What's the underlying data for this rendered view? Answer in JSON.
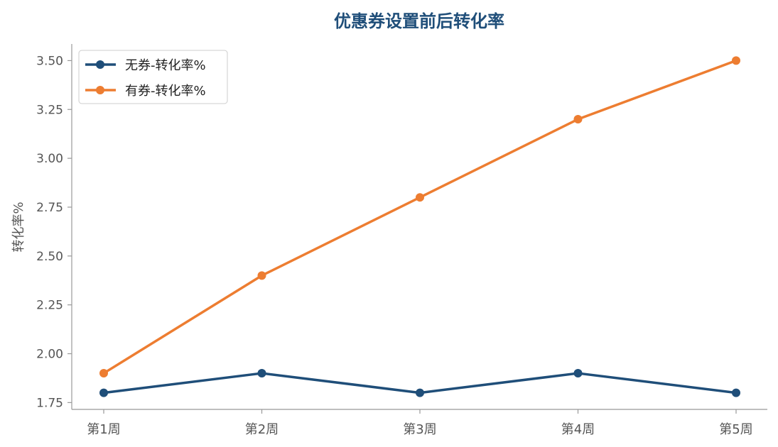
{
  "chart_data": {
    "type": "line",
    "title": "优惠券设置前后转化率",
    "xlabel": "",
    "ylabel": "转化率%",
    "categories": [
      "第1周",
      "第2周",
      "第3周",
      "第4周",
      "第5周"
    ],
    "ylim": [
      1.715,
      3.585
    ],
    "yticks": [
      1.75,
      2.0,
      2.25,
      2.5,
      2.75,
      3.0,
      3.25,
      3.5
    ],
    "ytick_labels": [
      "1.75",
      "2.00",
      "2.25",
      "2.50",
      "2.75",
      "3.00",
      "3.25",
      "3.50"
    ],
    "grid": false,
    "legend_position": "top-left",
    "series": [
      {
        "name": "无券-转化率%",
        "color": "#1f4e79",
        "values": [
          1.8,
          1.9,
          1.8,
          1.9,
          1.8
        ]
      },
      {
        "name": "有券-转化率%",
        "color": "#ed7d31",
        "values": [
          1.9,
          2.4,
          2.8,
          3.2,
          3.5
        ]
      }
    ],
    "colors": {
      "title": "#1f4e79",
      "axis": "#999999",
      "tick_text": "#555555"
    }
  }
}
